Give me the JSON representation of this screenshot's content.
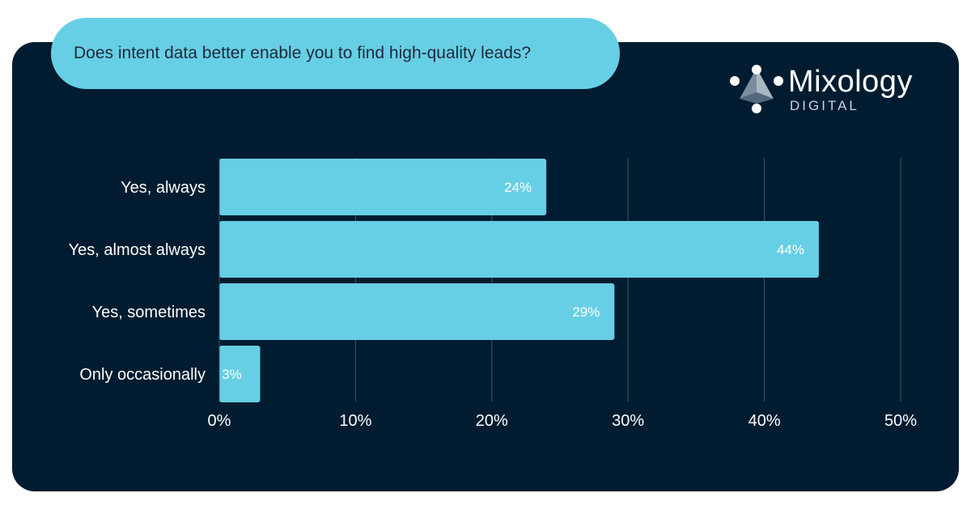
{
  "question": "Does intent data better enable you to find high-quality leads?",
  "logo": {
    "name": "Mixology",
    "sub": "DIGITAL"
  },
  "colors": {
    "panel": "#011c30",
    "accent": "#67cfe5",
    "grid": "#3c5566",
    "text": "#ffffff"
  },
  "chart_data": {
    "type": "bar",
    "orientation": "horizontal",
    "categories": [
      "Yes, always",
      "Yes, almost always",
      "Yes, sometimes",
      "Only occasionally"
    ],
    "values": [
      24,
      44,
      29,
      3
    ],
    "data_labels": [
      "24%",
      "44%",
      "29%",
      "3%"
    ],
    "xlim": [
      0,
      50
    ],
    "xticks": [
      0,
      10,
      20,
      30,
      40,
      50
    ],
    "xtick_labels": [
      "0%",
      "10%",
      "20%",
      "30%",
      "40%",
      "50%"
    ],
    "grid": "vertical",
    "legend": "none"
  }
}
